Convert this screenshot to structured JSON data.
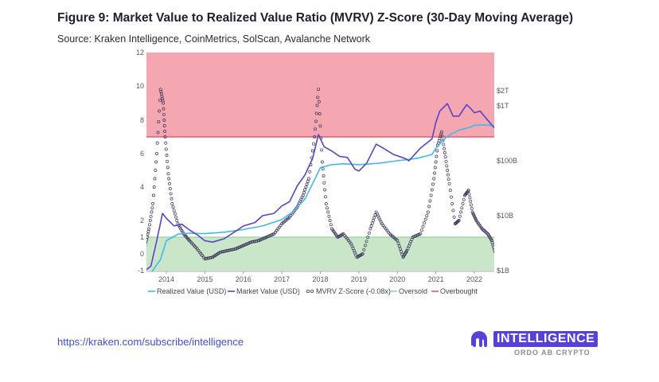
{
  "title": "Figure 9: Market Value to Realized Value Ratio (MVRV) Z-Score (30-Day Moving Average)",
  "subtitle": "Source: Kraken Intelligence, CoinMetrics, SolScan, Avalanche Network",
  "footer": {
    "link": "https://kraken.com/subscribe/intelligence",
    "brand": "INTELLIGENCE",
    "tagline": "ORDO AB CRYPTO"
  },
  "watermark": "INTELLIGENCE",
  "colors": {
    "realized": "#41b9ea",
    "market": "#5a43c9",
    "zscore_stroke": "#3a355a",
    "oversold_fill": "#c9e6c9",
    "oversold_line": "#9dd39d",
    "overbought_fill": "#f4a7b1",
    "overbought_line": "#e85a72"
  },
  "chart_data": {
    "type": "line",
    "title": "",
    "ylabel_left": "",
    "ylabel_right": "",
    "ylim_left": [
      -1,
      12
    ],
    "left_ticks": [
      "-1",
      "0",
      "1",
      "2",
      "4",
      "6",
      "8",
      "10",
      "12"
    ],
    "right_ticks": [
      "$1B",
      "$10B",
      "$100B",
      "$1T",
      "$2T"
    ],
    "right_scale": "log",
    "x_ticks": [
      "2014",
      "2015",
      "2016",
      "2017",
      "2018",
      "2019",
      "2020",
      "2021",
      "2022"
    ],
    "grid": false,
    "legend_position": "bottom",
    "bands": {
      "oversold": {
        "from": -1,
        "to": 1
      },
      "overbought": {
        "from": 7,
        "to": 12
      }
    },
    "legend": [
      {
        "name": "Realized Value (USD)",
        "style": "line",
        "color": "#41b9ea"
      },
      {
        "name": "Market Value (USD)",
        "style": "line",
        "color": "#5a43c9"
      },
      {
        "name": "MVRV Z-Score (-0.08x)",
        "style": "dots",
        "color": "#3a355a"
      },
      {
        "name": "Oversold",
        "style": "line",
        "color": "#9dd39d"
      },
      {
        "name": "Overbought",
        "style": "line",
        "color": "#e85a72"
      }
    ],
    "series": [
      {
        "name": "Realized Value (USD)",
        "axis": "right",
        "x": [
          2013.45,
          2013.6,
          2013.85,
          2014.0,
          2014.3,
          2014.6,
          2015.0,
          2015.5,
          2016.0,
          2016.5,
          2017.0,
          2017.3,
          2017.6,
          2017.85,
          2018.0,
          2018.3,
          2018.6,
          2019.0,
          2019.5,
          2020.0,
          2020.5,
          2020.9,
          2021.0,
          2021.3,
          2021.6,
          2021.9,
          2022.0,
          2022.2,
          2022.45,
          2022.55
        ],
        "y": [
          0.8,
          0.9,
          1.6,
          3.5,
          4.6,
          4.8,
          4.7,
          5.0,
          5.6,
          6.5,
          8.5,
          12,
          20,
          45,
          75,
          85,
          88,
          85,
          90,
          100,
          110,
          130,
          170,
          280,
          360,
          410,
          440,
          450,
          440,
          420
        ]
      },
      {
        "name": "Market Value (USD)",
        "axis": "right",
        "x": [
          2013.45,
          2013.6,
          2013.75,
          2013.9,
          2014.0,
          2014.2,
          2014.4,
          2014.6,
          2014.8,
          2015.0,
          2015.2,
          2015.5,
          2015.8,
          2016.0,
          2016.3,
          2016.5,
          2016.8,
          2017.0,
          2017.2,
          2017.4,
          2017.6,
          2017.8,
          2017.95,
          2018.1,
          2018.3,
          2018.5,
          2018.7,
          2018.9,
          2019.0,
          2019.2,
          2019.45,
          2019.6,
          2019.9,
          2020.2,
          2020.3,
          2020.6,
          2020.9,
          2021.0,
          2021.1,
          2021.3,
          2021.45,
          2021.6,
          2021.8,
          2021.9,
          2022.0,
          2022.15,
          2022.3,
          2022.45,
          2022.55
        ],
        "y": [
          1.0,
          1.2,
          3.5,
          11,
          9,
          6.5,
          7,
          5.5,
          4.5,
          3.5,
          3.3,
          3.8,
          5.2,
          6.5,
          7.5,
          10,
          11,
          15,
          18,
          35,
          55,
          110,
          300,
          180,
          150,
          120,
          115,
          70,
          65,
          90,
          200,
          175,
          130,
          110,
          100,
          170,
          250,
          500,
          800,
          1100,
          650,
          650,
          1050,
          900,
          750,
          800,
          600,
          450,
          380
        ]
      },
      {
        "name": "MVRV Z-Score (-0.08x)",
        "axis": "left",
        "x": [
          2013.45,
          2013.55,
          2013.65,
          2013.75,
          2013.85,
          2013.92,
          2013.97,
          2014.05,
          2014.15,
          2014.3,
          2014.45,
          2014.6,
          2014.8,
          2015.0,
          2015.2,
          2015.4,
          2015.6,
          2015.8,
          2016.0,
          2016.2,
          2016.4,
          2016.6,
          2016.8,
          2017.0,
          2017.2,
          2017.4,
          2017.55,
          2017.7,
          2017.85,
          2017.95,
          2018.05,
          2018.15,
          2018.3,
          2018.45,
          2018.6,
          2018.8,
          2018.95,
          2019.1,
          2019.3,
          2019.45,
          2019.6,
          2019.8,
          2020.0,
          2020.15,
          2020.25,
          2020.4,
          2020.6,
          2020.8,
          2020.95,
          2021.05,
          2021.15,
          2021.25,
          2021.35,
          2021.5,
          2021.6,
          2021.75,
          2021.85,
          2021.95,
          2022.05,
          2022.2,
          2022.35,
          2022.45,
          2022.55
        ],
        "y": [
          0.5,
          1.5,
          3.0,
          6.0,
          9.8,
          9.0,
          7.0,
          4.8,
          3.0,
          1.8,
          1.2,
          0.8,
          0.3,
          -0.3,
          -0.2,
          0.1,
          0.2,
          0.3,
          0.5,
          0.7,
          0.8,
          1.0,
          1.2,
          1.8,
          2.2,
          2.8,
          3.5,
          4.5,
          7.0,
          9.8,
          5.5,
          3.0,
          1.5,
          1.0,
          1.2,
          0.6,
          -0.2,
          0.0,
          1.5,
          2.5,
          1.8,
          1.2,
          0.8,
          -0.2,
          0.2,
          1.0,
          1.2,
          2.5,
          4.5,
          6.5,
          7.3,
          5.8,
          4.2,
          1.8,
          2.0,
          3.5,
          3.8,
          2.5,
          2.0,
          1.5,
          1.2,
          0.8,
          0.0
        ]
      }
    ]
  }
}
